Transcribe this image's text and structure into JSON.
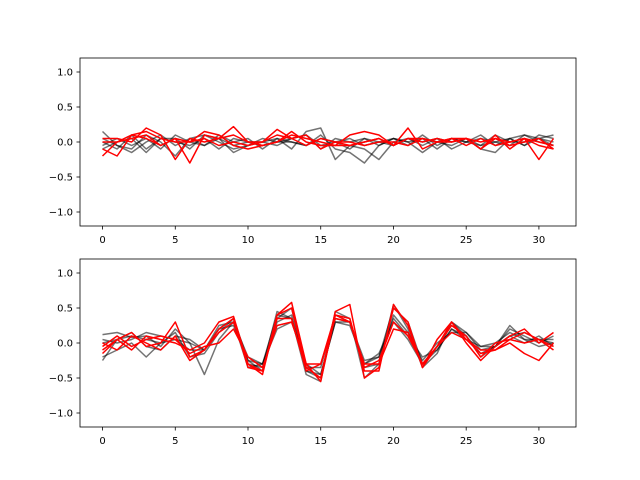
{
  "colors": {
    "gray": "#000000",
    "red": "#ff0000",
    "axis": "#000000",
    "background": "#ffffff"
  },
  "chart_data": [
    {
      "type": "line",
      "title": "",
      "xlabel": "",
      "ylabel": "",
      "xlim": [
        -1.55,
        32.55
      ],
      "ylim": [
        -1.2,
        1.2
      ],
      "xticks": [
        0,
        5,
        10,
        15,
        20,
        25,
        30
      ],
      "yticks": [
        -1.0,
        -0.5,
        0.0,
        0.5,
        1.0
      ],
      "ytick_labels": [
        "−1.0",
        "−0.5",
        "0.0",
        "0.5",
        "1.0"
      ],
      "grid": false,
      "x": [
        0,
        1,
        2,
        3,
        4,
        5,
        6,
        7,
        8,
        9,
        10,
        11,
        12,
        13,
        14,
        15,
        16,
        17,
        18,
        19,
        20,
        21,
        22,
        23,
        24,
        25,
        26,
        27,
        28,
        29,
        30,
        31
      ],
      "series": [
        {
          "group": "gray",
          "values": [
            0.15,
            -0.05,
            -0.1,
            0.1,
            0.0,
            -0.2,
            0.05,
            0.1,
            0.0,
            -0.1,
            -0.05,
            0.0,
            0.05,
            -0.1,
            0.15,
            0.2,
            -0.25,
            -0.05,
            -0.1,
            -0.25,
            0.0,
            0.05,
            -0.05,
            0.05,
            -0.1,
            0.0,
            0.1,
            -0.05,
            0.05,
            -0.05,
            0.1,
            0.05
          ]
        },
        {
          "group": "gray",
          "values": [
            0.0,
            -0.1,
            0.1,
            -0.1,
            0.05,
            0.05,
            -0.1,
            0.1,
            0.05,
            -0.05,
            0.0,
            -0.05,
            0.0,
            0.05,
            0.1,
            -0.05,
            0.0,
            -0.1,
            0.05,
            -0.05,
            0.05,
            0.0,
            0.05,
            -0.1,
            0.05,
            0.0,
            -0.05,
            0.0,
            -0.05,
            0.1,
            0.0,
            -0.05
          ]
        },
        {
          "group": "gray",
          "values": [
            -0.05,
            0.05,
            -0.05,
            0.05,
            -0.1,
            0.1,
            0.0,
            -0.05,
            0.05,
            -0.15,
            -0.05,
            0.05,
            0.0,
            0.0,
            -0.05,
            0.1,
            -0.1,
            -0.15,
            -0.3,
            -0.05,
            0.05,
            0.0,
            -0.15,
            0.0,
            -0.05,
            0.05,
            -0.05,
            0.1,
            0.0,
            0.0,
            0.05,
            0.1
          ]
        },
        {
          "group": "gray",
          "values": [
            0.05,
            -0.05,
            -0.15,
            0.0,
            0.1,
            -0.05,
            0.05,
            -0.05,
            0.1,
            0.0,
            0.05,
            -0.1,
            0.05,
            0.0,
            -0.05,
            0.05,
            0.0,
            0.05,
            -0.05,
            0.0,
            -0.05,
            0.05,
            0.0,
            0.05,
            0.0,
            0.05,
            -0.1,
            -0.15,
            0.05,
            -0.05,
            0.05,
            0.0
          ]
        },
        {
          "group": "gray",
          "values": [
            -0.1,
            0.0,
            0.05,
            -0.15,
            0.05,
            0.0,
            -0.05,
            0.05,
            -0.1,
            0.05,
            0.0,
            0.0,
            -0.05,
            0.05,
            0.1,
            -0.1,
            0.05,
            0.0,
            0.05,
            0.0,
            0.05,
            -0.05,
            0.1,
            -0.05,
            0.05,
            0.0,
            0.05,
            0.0,
            0.05,
            0.1,
            0.05,
            -0.05
          ]
        },
        {
          "group": "red",
          "values": [
            -0.2,
            0.0,
            0.05,
            0.1,
            -0.05,
            0.05,
            -0.3,
            0.1,
            0.05,
            0.1,
            0.0,
            -0.05,
            0.0,
            0.15,
            0.0,
            -0.05,
            -0.05,
            0.1,
            0.15,
            0.1,
            -0.05,
            0.05,
            0.05,
            0.0,
            0.05,
            0.05,
            0.0,
            0.05,
            -0.05,
            0.0,
            0.05,
            -0.1
          ]
        },
        {
          "group": "red",
          "values": [
            0.05,
            0.05,
            0.0,
            0.2,
            0.1,
            -0.25,
            0.05,
            0.0,
            0.05,
            0.22,
            0.0,
            0.0,
            0.1,
            0.05,
            0.1,
            -0.1,
            0.0,
            -0.05,
            0.0,
            0.05,
            -0.05,
            0.05,
            0.0,
            0.05,
            0.0,
            0.05,
            -0.1,
            0.05,
            0.0,
            0.05,
            -0.25,
            0.05
          ]
        },
        {
          "group": "red",
          "values": [
            -0.1,
            -0.2,
            0.1,
            0.15,
            0.05,
            0.0,
            0.0,
            0.15,
            0.1,
            -0.05,
            -0.1,
            -0.05,
            0.0,
            0.1,
            0.05,
            0.0,
            -0.05,
            -0.05,
            0.0,
            0.05,
            -0.05,
            0.2,
            -0.1,
            0.0,
            0.0,
            0.05,
            -0.1,
            0.1,
            -0.1,
            0.05,
            0.0,
            -0.05
          ]
        },
        {
          "group": "red",
          "values": [
            0.0,
            0.0,
            0.1,
            0.05,
            -0.05,
            0.05,
            0.0,
            0.05,
            -0.05,
            0.0,
            -0.05,
            0.0,
            0.18,
            0.05,
            -0.05,
            0.05,
            0.0,
            0.0,
            -0.05,
            0.0,
            0.0,
            -0.05,
            0.05,
            0.0,
            0.05,
            -0.05,
            0.05,
            -0.05,
            0.0,
            0.05,
            -0.05,
            -0.1
          ]
        }
      ]
    },
    {
      "type": "line",
      "title": "",
      "xlabel": "",
      "ylabel": "",
      "xlim": [
        -1.55,
        32.55
      ],
      "ylim": [
        -1.2,
        1.2
      ],
      "xticks": [
        0,
        5,
        10,
        15,
        20,
        25,
        30
      ],
      "yticks": [
        -1.0,
        -0.5,
        0.0,
        0.5,
        1.0
      ],
      "ytick_labels": [
        "−1.0",
        "−0.5",
        "0.0",
        "0.5",
        "1.0"
      ],
      "grid": false,
      "x": [
        0,
        1,
        2,
        3,
        4,
        5,
        6,
        7,
        8,
        9,
        10,
        11,
        12,
        13,
        14,
        15,
        16,
        17,
        18,
        19,
        20,
        21,
        22,
        23,
        24,
        25,
        26,
        27,
        28,
        29,
        30,
        31
      ],
      "series": [
        {
          "group": "gray",
          "values": [
            0.12,
            0.15,
            0.08,
            0.1,
            -0.05,
            0.2,
            0.0,
            -0.45,
            0.05,
            0.3,
            -0.2,
            -0.3,
            0.2,
            0.3,
            -0.3,
            -0.45,
            0.3,
            0.25,
            -0.3,
            -0.15,
            0.3,
            0.05,
            -0.3,
            -0.1,
            0.2,
            0.1,
            -0.15,
            -0.05,
            0.25,
            0.05,
            -0.05,
            0.0
          ]
        },
        {
          "group": "gray",
          "values": [
            -0.25,
            0.05,
            0.15,
            -0.05,
            -0.1,
            0.1,
            0.05,
            -0.1,
            0.2,
            0.35,
            -0.25,
            -0.4,
            0.35,
            0.5,
            -0.4,
            -0.5,
            0.35,
            0.3,
            -0.25,
            -0.2,
            0.5,
            0.3,
            -0.3,
            -0.05,
            0.3,
            0.15,
            -0.1,
            -0.05,
            0.2,
            0.1,
            0.0,
            0.1
          ]
        },
        {
          "group": "gray",
          "values": [
            0.05,
            0.0,
            0.05,
            0.15,
            0.1,
            0.05,
            -0.1,
            -0.1,
            0.25,
            0.3,
            -0.35,
            -0.3,
            0.4,
            0.35,
            -0.35,
            -0.35,
            0.4,
            0.3,
            -0.35,
            -0.3,
            0.4,
            0.15,
            -0.25,
            0.0,
            0.15,
            0.15,
            -0.05,
            -0.05,
            0.1,
            0.15,
            0.05,
            0.05
          ]
        },
        {
          "group": "gray",
          "values": [
            0.0,
            0.05,
            0.1,
            0.05,
            0.0,
            0.05,
            0.0,
            -0.1,
            0.2,
            0.25,
            -0.25,
            -0.3,
            0.3,
            0.4,
            -0.4,
            -0.45,
            0.3,
            0.3,
            -0.3,
            -0.2,
            0.35,
            0.1,
            -0.2,
            -0.1,
            0.2,
            0.05,
            -0.05,
            0.0,
            0.15,
            0.05,
            0.05,
            0.0
          ]
        },
        {
          "group": "gray",
          "values": [
            -0.2,
            -0.1,
            0.0,
            -0.2,
            0.0,
            0.15,
            -0.2,
            -0.15,
            0.15,
            0.35,
            -0.3,
            -0.35,
            0.45,
            0.35,
            -0.45,
            -0.55,
            0.45,
            0.35,
            -0.5,
            -0.3,
            0.55,
            0.2,
            -0.35,
            -0.15,
            0.3,
            0.1,
            -0.2,
            -0.05,
            0.1,
            0.0,
            0.1,
            -0.05
          ]
        },
        {
          "group": "red",
          "values": [
            -0.1,
            0.05,
            0.15,
            -0.05,
            0.0,
            0.3,
            -0.2,
            -0.1,
            0.2,
            0.35,
            -0.35,
            -0.4,
            0.4,
            0.5,
            -0.35,
            -0.5,
            0.45,
            0.55,
            -0.5,
            -0.35,
            0.5,
            0.3,
            -0.35,
            -0.05,
            0.3,
            0.05,
            -0.15,
            -0.1,
            0.0,
            -0.15,
            -0.25,
            0.0
          ]
        },
        {
          "group": "red",
          "values": [
            0.0,
            -0.1,
            0.1,
            0.0,
            -0.1,
            0.1,
            -0.25,
            -0.1,
            0.15,
            0.3,
            -0.3,
            -0.45,
            0.4,
            0.58,
            -0.3,
            -0.55,
            0.4,
            0.35,
            -0.4,
            -0.4,
            0.55,
            0.25,
            -0.35,
            0.05,
            0.3,
            0.0,
            -0.25,
            -0.05,
            0.1,
            0.2,
            0.0,
            0.15
          ]
        },
        {
          "group": "red",
          "values": [
            -0.15,
            0.05,
            -0.1,
            0.1,
            0.05,
            0.0,
            -0.1,
            0.0,
            0.3,
            0.38,
            -0.3,
            -0.4,
            0.35,
            0.35,
            -0.4,
            -0.3,
            0.4,
            0.3,
            -0.3,
            -0.3,
            0.2,
            0.15,
            -0.3,
            -0.05,
            0.25,
            0.1,
            -0.2,
            0.0,
            0.05,
            0.15,
            0.05,
            -0.05
          ]
        },
        {
          "group": "red",
          "values": [
            -0.05,
            0.1,
            -0.05,
            0.05,
            0.1,
            0.05,
            -0.15,
            -0.05,
            0.0,
            0.2,
            -0.2,
            -0.35,
            0.25,
            0.3,
            -0.3,
            -0.3,
            0.35,
            0.3,
            -0.35,
            -0.25,
            0.3,
            0.1,
            -0.3,
            -0.05,
            0.15,
            0.05,
            -0.1,
            -0.1,
            0.05,
            0.0,
            0.05,
            -0.1
          ]
        }
      ]
    }
  ]
}
